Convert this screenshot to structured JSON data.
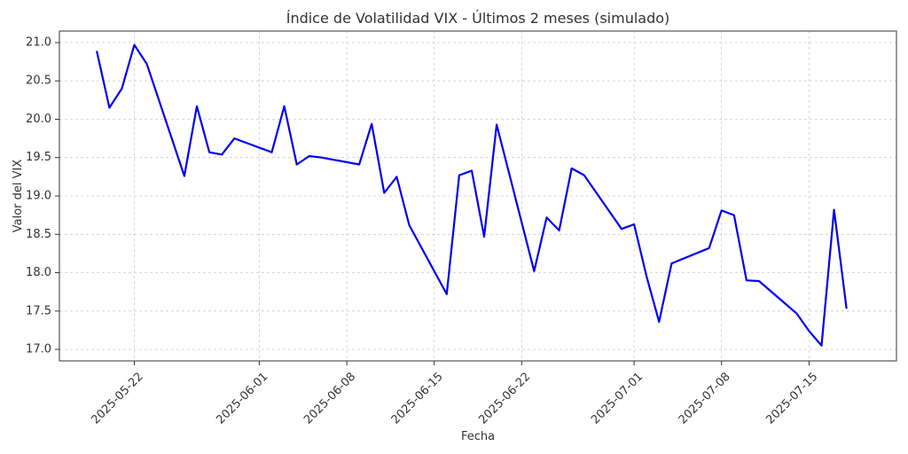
{
  "chart_data": {
    "type": "line",
    "title": "Índice de Volatilidad VIX - Últimos 2 meses (simulado)",
    "xlabel": "Fecha",
    "ylabel": "Valor del VIX",
    "ylim": [
      16.85,
      21.15
    ],
    "xlim": [
      "2025-05-16",
      "2025-07-22"
    ],
    "grid": true,
    "x_ticks": [
      "2025-05-22",
      "2025-06-01",
      "2025-06-08",
      "2025-06-15",
      "2025-06-22",
      "2025-07-01",
      "2025-07-08",
      "2025-07-15"
    ],
    "y_ticks": [
      "17.0",
      "17.5",
      "18.0",
      "18.5",
      "19.0",
      "19.5",
      "20.0",
      "20.5",
      "21.0"
    ],
    "series": [
      {
        "color": "#0000ee",
        "points": [
          [
            "2025-05-19",
            20.88
          ],
          [
            "2025-05-20",
            20.15
          ],
          [
            "2025-05-21",
            20.4
          ],
          [
            "2025-05-22",
            20.97
          ],
          [
            "2025-05-23",
            20.72
          ],
          [
            "2025-05-26",
            19.26
          ],
          [
            "2025-05-27",
            20.17
          ],
          [
            "2025-05-28",
            19.57
          ],
          [
            "2025-05-29",
            19.54
          ],
          [
            "2025-05-30",
            19.75
          ],
          [
            "2025-06-02",
            19.57
          ],
          [
            "2025-06-03",
            20.17
          ],
          [
            "2025-06-04",
            19.41
          ],
          [
            "2025-06-05",
            19.52
          ],
          [
            "2025-06-06",
            19.5
          ],
          [
            "2025-06-09",
            19.41
          ],
          [
            "2025-06-10",
            19.94
          ],
          [
            "2025-06-11",
            19.04
          ],
          [
            "2025-06-12",
            19.25
          ],
          [
            "2025-06-13",
            18.62
          ],
          [
            "2025-06-16",
            17.72
          ],
          [
            "2025-06-17",
            19.27
          ],
          [
            "2025-06-18",
            19.33
          ],
          [
            "2025-06-19",
            18.47
          ],
          [
            "2025-06-20",
            19.93
          ],
          [
            "2025-06-23",
            18.02
          ],
          [
            "2025-06-24",
            18.72
          ],
          [
            "2025-06-25",
            18.55
          ],
          [
            "2025-06-26",
            19.36
          ],
          [
            "2025-06-27",
            19.27
          ],
          [
            "2025-06-30",
            18.57
          ],
          [
            "2025-07-01",
            18.63
          ],
          [
            "2025-07-02",
            17.95
          ],
          [
            "2025-07-03",
            17.36
          ],
          [
            "2025-07-04",
            18.12
          ],
          [
            "2025-07-07",
            18.32
          ],
          [
            "2025-07-08",
            18.81
          ],
          [
            "2025-07-09",
            18.75
          ],
          [
            "2025-07-10",
            17.9
          ],
          [
            "2025-07-11",
            17.89
          ],
          [
            "2025-07-14",
            17.47
          ],
          [
            "2025-07-15",
            17.24
          ],
          [
            "2025-07-16",
            17.05
          ],
          [
            "2025-07-17",
            18.82
          ],
          [
            "2025-07-18",
            17.54
          ]
        ]
      }
    ]
  }
}
